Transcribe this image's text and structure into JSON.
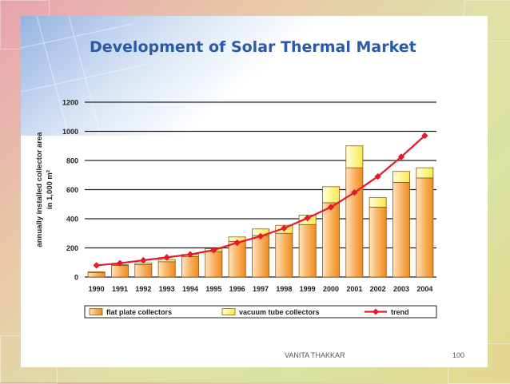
{
  "slide": {
    "footer_author": "VANITA THAKKAR",
    "footer_page": "100"
  },
  "colors": {
    "flat_plate": "#f59a2e",
    "vacuum_tube": "#fff36a",
    "trend": "#e8182c",
    "title": "#2a5aa8"
  },
  "chart_data": {
    "type": "bar",
    "title": "Development of Solar Thermal Market",
    "ylabel": "annually installed collector area in 1,000 m²",
    "xlabel": "",
    "ylim": [
      0,
      1200
    ],
    "yticks": [
      0,
      200,
      400,
      600,
      800,
      1000,
      1200
    ],
    "grid": true,
    "legend_position": "bottom",
    "stacked": true,
    "categories": [
      "1990",
      "1991",
      "1992",
      "1993",
      "1994",
      "1995",
      "1996",
      "1997",
      "1998",
      "1999",
      "2000",
      "2001",
      "2002",
      "2003",
      "2004"
    ],
    "series": [
      {
        "name": "flat plate collectors",
        "kind": "bar",
        "values": [
          30,
          80,
          85,
          105,
          140,
          175,
          245,
          285,
          300,
          360,
          510,
          750,
          480,
          650,
          680
        ]
      },
      {
        "name": "vacuum tube collectors",
        "kind": "bar",
        "values": [
          5,
          5,
          10,
          15,
          15,
          20,
          30,
          45,
          55,
          65,
          110,
          150,
          65,
          75,
          70
        ]
      },
      {
        "name": "trend",
        "kind": "line",
        "values": [
          80,
          95,
          115,
          135,
          155,
          185,
          235,
          280,
          335,
          405,
          480,
          580,
          690,
          825,
          970
        ]
      }
    ]
  }
}
